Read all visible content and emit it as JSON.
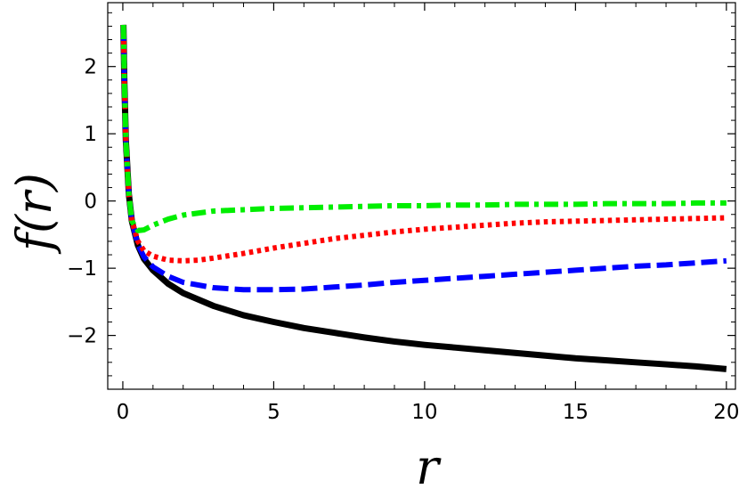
{
  "chart_data": {
    "type": "line",
    "title": "",
    "xlabel": "r",
    "ylabel": "f(r)",
    "xlim": [
      -0.5,
      20.3
    ],
    "ylim": [
      -2.8,
      2.95
    ],
    "x_ticks": [
      0,
      5,
      10,
      15,
      20
    ],
    "x_tick_labels": [
      "0",
      "5",
      "10",
      "15",
      "20"
    ],
    "y_ticks": [
      -2,
      -1,
      0,
      1,
      2
    ],
    "y_tick_labels": [
      "−2",
      "−1",
      "0",
      "1",
      "2"
    ],
    "grid": false,
    "legend": "none",
    "series": [
      {
        "color": "#000000",
        "style": "solid",
        "x": [
          0.02,
          0.05,
          0.1,
          0.2,
          0.3,
          0.5,
          0.7,
          1,
          1.5,
          2,
          3,
          4,
          5,
          6,
          7,
          8,
          9,
          10,
          11,
          12,
          13,
          14,
          15,
          16,
          17,
          18,
          19,
          20
        ],
        "y": [
          2.62,
          1.8,
          0.9,
          0.1,
          -0.3,
          -0.66,
          -0.86,
          -1.03,
          -1.23,
          -1.37,
          -1.56,
          -1.7,
          -1.8,
          -1.89,
          -1.96,
          -2.03,
          -2.09,
          -2.14,
          -2.18,
          -2.22,
          -2.26,
          -2.3,
          -2.34,
          -2.37,
          -2.4,
          -2.43,
          -2.46,
          -2.5
        ]
      },
      {
        "color": "#0000ff",
        "style": "dashed",
        "x": [
          0.02,
          0.05,
          0.1,
          0.2,
          0.3,
          0.5,
          0.7,
          1,
          1.5,
          2,
          3,
          4,
          5,
          6,
          7,
          8,
          9,
          10,
          11,
          12,
          13,
          14,
          15,
          16,
          17,
          18,
          19,
          20
        ],
        "y": [
          2.62,
          1.8,
          0.9,
          0.1,
          -0.3,
          -0.65,
          -0.83,
          -0.98,
          -1.12,
          -1.21,
          -1.29,
          -1.32,
          -1.32,
          -1.31,
          -1.28,
          -1.25,
          -1.21,
          -1.18,
          -1.15,
          -1.12,
          -1.09,
          -1.06,
          -1.03,
          -1.0,
          -0.97,
          -0.95,
          -0.92,
          -0.89
        ]
      },
      {
        "color": "#ff0000",
        "style": "dotted",
        "x": [
          0.02,
          0.05,
          0.1,
          0.2,
          0.3,
          0.5,
          0.7,
          1,
          1.5,
          2,
          2.5,
          3,
          4,
          5,
          6,
          7,
          8,
          9,
          10,
          11,
          12,
          13,
          14,
          15,
          16,
          17,
          18,
          19,
          20
        ],
        "y": [
          2.62,
          1.8,
          0.9,
          0.1,
          -0.3,
          -0.6,
          -0.74,
          -0.82,
          -0.88,
          -0.89,
          -0.88,
          -0.85,
          -0.78,
          -0.7,
          -0.63,
          -0.56,
          -0.51,
          -0.46,
          -0.42,
          -0.39,
          -0.36,
          -0.33,
          -0.31,
          -0.3,
          -0.29,
          -0.28,
          -0.27,
          -0.26,
          -0.25
        ]
      },
      {
        "color": "#00ee00",
        "style": "dashdot",
        "x": [
          0.02,
          0.05,
          0.1,
          0.2,
          0.3,
          0.5,
          0.7,
          1,
          1.5,
          2,
          3,
          4,
          5,
          6,
          7,
          8,
          9,
          10,
          11,
          12,
          13,
          14,
          15,
          16,
          17,
          18,
          19,
          20
        ],
        "y": [
          2.62,
          1.8,
          0.9,
          0.1,
          -0.3,
          -0.44,
          -0.43,
          -0.36,
          -0.27,
          -0.21,
          -0.15,
          -0.13,
          -0.11,
          -0.1,
          -0.09,
          -0.08,
          -0.07,
          -0.07,
          -0.06,
          -0.06,
          -0.05,
          -0.05,
          -0.05,
          -0.04,
          -0.04,
          -0.04,
          -0.03,
          -0.03
        ]
      }
    ]
  }
}
